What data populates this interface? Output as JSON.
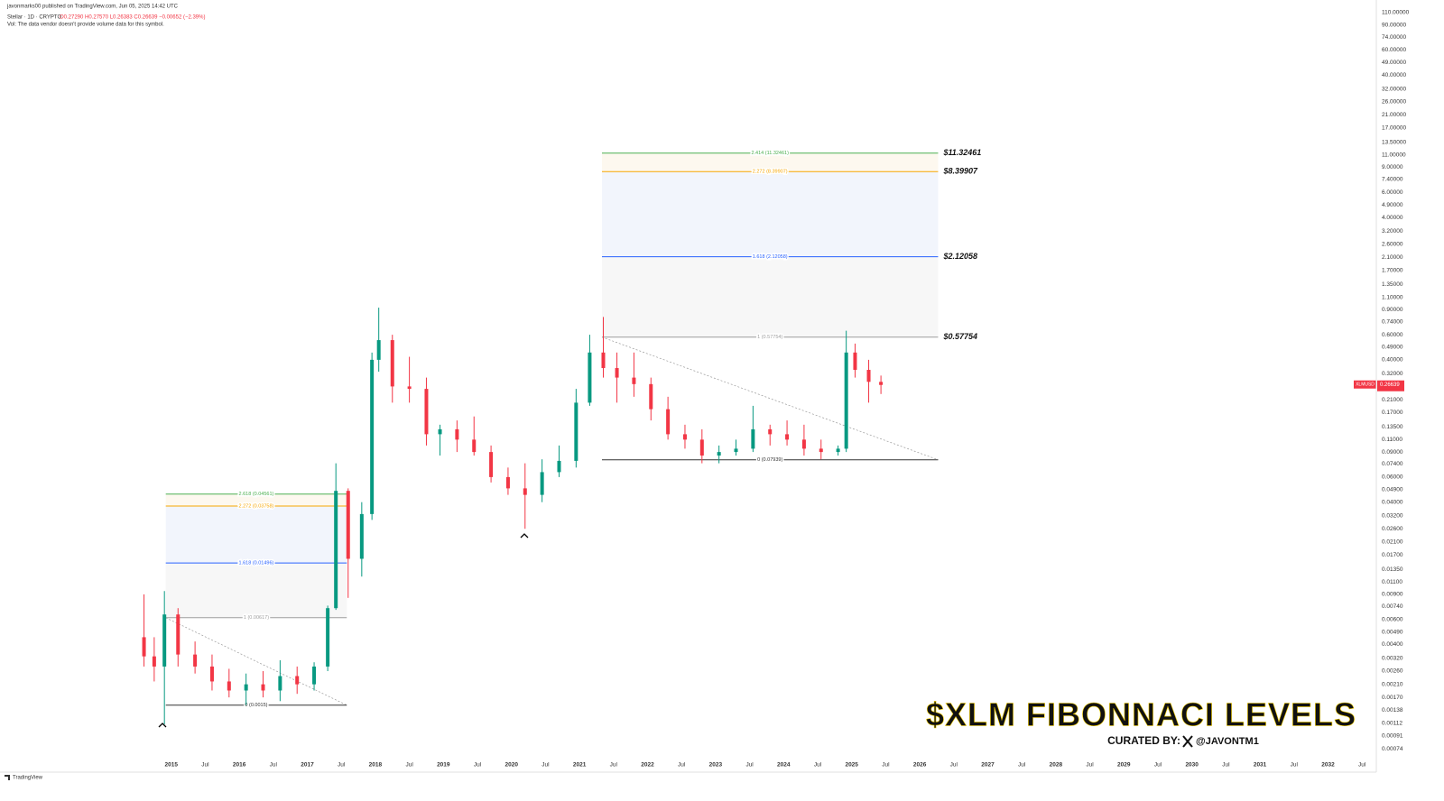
{
  "header": {
    "published": "javonmarks00 published on TradingView.com, Jun 05, 2025 14:42 UTC",
    "symbol": "Stellar · 1D · CRYPTO",
    "ohlc": "O0.27290 H0.27570 L0.26383 C0.26639 −0.00652 (−2.39%)",
    "volume_note": "Vol: The data vendor doesn't provide volume data for this symbol."
  },
  "chart_data": {
    "type": "candlestick",
    "log_scale": true,
    "grid": false,
    "x": [
      2014.6,
      2014.75,
      2014.9,
      2015.1,
      2015.35,
      2015.6,
      2015.85,
      2016.1,
      2016.35,
      2016.6,
      2016.85,
      2017.1,
      2017.3,
      2017.42,
      2017.6,
      2017.8,
      2017.95,
      2018.05,
      2018.25,
      2018.5,
      2018.75,
      2018.95,
      2019.2,
      2019.45,
      2019.7,
      2019.95,
      2020.2,
      2020.45,
      2020.7,
      2020.95,
      2021.15,
      2021.35,
      2021.55,
      2021.8,
      2022.05,
      2022.3,
      2022.55,
      2022.8,
      2023.05,
      2023.3,
      2023.55,
      2023.8,
      2024.05,
      2024.3,
      2024.55,
      2024.8,
      2024.92,
      2025.05,
      2025.25,
      2025.43
    ],
    "open": [
      0.0045,
      0.0033,
      0.0028,
      0.0065,
      0.0034,
      0.0028,
      0.0022,
      0.0019,
      0.0021,
      0.0019,
      0.0024,
      0.0021,
      0.0028,
      0.0072,
      0.048,
      0.016,
      0.033,
      0.4,
      0.55,
      0.26,
      0.25,
      0.12,
      0.13,
      0.11,
      0.09,
      0.06,
      0.05,
      0.045,
      0.065,
      0.078,
      0.2,
      0.45,
      0.35,
      0.3,
      0.27,
      0.18,
      0.12,
      0.11,
      0.085,
      0.09,
      0.095,
      0.13,
      0.12,
      0.11,
      0.095,
      0.09,
      0.095,
      0.45,
      0.34,
      0.28
    ],
    "high": [
      0.009,
      0.0045,
      0.0095,
      0.0072,
      0.0042,
      0.0034,
      0.0027,
      0.0025,
      0.0026,
      0.0031,
      0.0028,
      0.003,
      0.0075,
      0.075,
      0.05,
      0.04,
      0.45,
      0.93,
      0.6,
      0.42,
      0.3,
      0.14,
      0.15,
      0.16,
      0.1,
      0.07,
      0.075,
      0.08,
      0.1,
      0.25,
      0.6,
      0.8,
      0.45,
      0.45,
      0.3,
      0.22,
      0.14,
      0.13,
      0.1,
      0.11,
      0.19,
      0.14,
      0.15,
      0.14,
      0.11,
      0.1,
      0.64,
      0.52,
      0.4,
      0.31
    ],
    "low": [
      0.0028,
      0.0022,
      0.0011,
      0.0028,
      0.0025,
      0.0019,
      0.0017,
      0.0015,
      0.0017,
      0.0016,
      0.0018,
      0.0019,
      0.0026,
      0.007,
      0.0085,
      0.012,
      0.03,
      0.33,
      0.2,
      0.2,
      0.1,
      0.085,
      0.09,
      0.085,
      0.055,
      0.045,
      0.026,
      0.04,
      0.06,
      0.07,
      0.19,
      0.3,
      0.2,
      0.22,
      0.15,
      0.11,
      0.095,
      0.075,
      0.075,
      0.085,
      0.09,
      0.1,
      0.1,
      0.085,
      0.08,
      0.085,
      0.09,
      0.3,
      0.2,
      0.23
    ],
    "close": [
      0.0033,
      0.0028,
      0.0065,
      0.0034,
      0.0028,
      0.0022,
      0.0019,
      0.0021,
      0.0019,
      0.0024,
      0.0021,
      0.0028,
      0.0072,
      0.048,
      0.016,
      0.033,
      0.4,
      0.55,
      0.26,
      0.25,
      0.12,
      0.13,
      0.11,
      0.09,
      0.06,
      0.05,
      0.045,
      0.065,
      0.078,
      0.2,
      0.45,
      0.35,
      0.3,
      0.27,
      0.18,
      0.12,
      0.11,
      0.085,
      0.09,
      0.095,
      0.13,
      0.12,
      0.11,
      0.095,
      0.09,
      0.095,
      0.45,
      0.34,
      0.28,
      0.26639
    ],
    "up_color": "#089981",
    "down_color": "#f23645",
    "xlim": [
      2012.55,
      2032.71
    ],
    "xticks": [
      2015,
      {
        "value": 2015.5,
        "label": "Jul"
      },
      2016,
      {
        "value": 2016.5,
        "label": "Jul"
      },
      2017,
      {
        "value": 2017.5,
        "label": "Jul"
      },
      2018,
      {
        "value": 2018.5,
        "label": "Jul"
      },
      2019,
      {
        "value": 2019.5,
        "label": "Jul"
      },
      2020,
      {
        "value": 2020.5,
        "label": "Jul"
      },
      2021,
      {
        "value": 2021.5,
        "label": "Jul"
      },
      2022,
      {
        "value": 2022.5,
        "label": "Jul"
      },
      2023,
      {
        "value": 2023.5,
        "label": "Jul"
      },
      2024,
      {
        "value": 2024.5,
        "label": "Jul"
      },
      2025,
      {
        "value": 2025.5,
        "label": "Jul"
      },
      2026,
      {
        "value": 2026.5,
        "label": "Jul"
      },
      2027,
      {
        "value": 2027.5,
        "label": "Jul"
      },
      2028,
      {
        "value": 2028.5,
        "label": "Jul"
      },
      2029,
      {
        "value": 2029.5,
        "label": "Jul"
      },
      2030,
      {
        "value": 2030.5,
        "label": "Jul"
      },
      2031,
      {
        "value": 2031.5,
        "label": "Jul"
      },
      2032,
      {
        "value": 2032.5,
        "label": "Jul"
      }
    ],
    "ylim": [
      0.00053,
      120
    ],
    "yticks": [
      {
        "value": 110,
        "label": "110.00000"
      },
      {
        "value": 90,
        "label": "90.00000"
      },
      {
        "value": 74,
        "label": "74.00000"
      },
      {
        "value": 60,
        "label": "60.00000"
      },
      {
        "value": 49,
        "label": "49.00000"
      },
      {
        "value": 40,
        "label": "40.00000"
      },
      {
        "value": 32,
        "label": "32.00000"
      },
      {
        "value": 26,
        "label": "26.00000"
      },
      {
        "value": 21,
        "label": "21.00000"
      },
      {
        "value": 17,
        "label": "17.00000"
      },
      {
        "value": 13.5,
        "label": "13.50000"
      },
      {
        "value": 11,
        "label": "11.00000"
      },
      {
        "value": 9,
        "label": "9.00000"
      },
      {
        "value": 7.4,
        "label": "7.40000"
      },
      {
        "value": 6,
        "label": "6.00000"
      },
      {
        "value": 4.9,
        "label": "4.90000"
      },
      {
        "value": 4,
        "label": "4.00000"
      },
      {
        "value": 3.2,
        "label": "3.20000"
      },
      {
        "value": 2.6,
        "label": "2.60000"
      },
      {
        "value": 2.1,
        "label": "2.10000"
      },
      {
        "value": 1.7,
        "label": "1.70000"
      },
      {
        "value": 1.35,
        "label": "1.35000"
      },
      {
        "value": 1.1,
        "label": "1.10000"
      },
      {
        "value": 0.9,
        "label": "0.90000"
      },
      {
        "value": 0.74,
        "label": "0.74000"
      },
      {
        "value": 0.6,
        "label": "0.60000"
      },
      {
        "value": 0.49,
        "label": "0.49000"
      },
      {
        "value": 0.4,
        "label": "0.40000"
      },
      {
        "value": 0.32,
        "label": "0.32000"
      },
      {
        "value": 0.21,
        "label": "0.21000"
      },
      {
        "value": 0.17,
        "label": "0.17000"
      },
      {
        "value": 0.135,
        "label": "0.13500"
      },
      {
        "value": 0.11,
        "label": "0.11000"
      },
      {
        "value": 0.09,
        "label": "0.09000"
      },
      {
        "value": 0.074,
        "label": "0.07400"
      },
      {
        "value": 0.06,
        "label": "0.06000"
      },
      {
        "value": 0.049,
        "label": "0.04900"
      },
      {
        "value": 0.04,
        "label": "0.04000"
      },
      {
        "value": 0.032,
        "label": "0.03200"
      },
      {
        "value": 0.026,
        "label": "0.02600"
      },
      {
        "value": 0.021,
        "label": "0.02100"
      },
      {
        "value": 0.017,
        "label": "0.01700"
      },
      {
        "value": 0.0135,
        "label": "0.01350"
      },
      {
        "value": 0.011,
        "label": "0.01100"
      },
      {
        "value": 0.009,
        "label": "0.00900"
      },
      {
        "value": 0.0074,
        "label": "0.00740"
      },
      {
        "value": 0.006,
        "label": "0.00600"
      },
      {
        "value": 0.0049,
        "label": "0.00490"
      },
      {
        "value": 0.004,
        "label": "0.00400"
      },
      {
        "value": 0.0032,
        "label": "0.00320"
      },
      {
        "value": 0.0026,
        "label": "0.00260"
      },
      {
        "value": 0.0021,
        "label": "0.00210"
      },
      {
        "value": 0.0017,
        "label": "0.00170"
      },
      {
        "value": 0.00138,
        "label": "0.00138"
      },
      {
        "value": 0.00112,
        "label": "0.00112"
      },
      {
        "value": 0.00091,
        "label": "0.00091"
      },
      {
        "value": 0.00074,
        "label": "0.00074"
      }
    ],
    "last_price": {
      "symbol": "XLMUSD",
      "value": 0.26639,
      "color": "#f23645"
    },
    "fib_sets": [
      {
        "x_range": [
          2014.92,
          2017.58
        ],
        "levels": [
          {
            "label": "2.618 (0.04561)",
            "value": 0.04561,
            "color": "#4caf50"
          },
          {
            "label": "2.272 (0.03758)",
            "value": 0.03758,
            "color": "#f7a600",
            "zone_color": "#fdf8ef"
          },
          {
            "label": "1.618 (0.01496)",
            "value": 0.01496,
            "color": "#2962ff",
            "zone_color": "#f2f5fc"
          },
          {
            "label": "1 (0.00617)",
            "value": 0.00617,
            "color": "#9e9e9e",
            "zone_color": "#f7f7f7"
          },
          {
            "label": "0 (0.0015)",
            "value": 0.0015,
            "color": "#333333"
          }
        ]
      },
      {
        "x_range": [
          2021.33,
          2026.27
        ],
        "levels": [
          {
            "label": "2.414 (11.32461)",
            "value": 11.32461,
            "color": "#4caf50",
            "price_label": "$11.32461"
          },
          {
            "label": "2.272 (8.39907)",
            "value": 8.39907,
            "color": "#f7a600",
            "zone_color": "#fdf8ef",
            "price_label": "$8.39907"
          },
          {
            "label": "1.618 (2.12058)",
            "value": 2.12058,
            "color": "#2962ff",
            "zone_color": "#f2f5fc",
            "price_label": "$2.12058"
          },
          {
            "label": "1 (0.57754)",
            "value": 0.57754,
            "color": "#9e9e9e",
            "zone_color": "#f7f7f7",
            "price_label": "$0.57754"
          },
          {
            "label": "0 (0.07939)",
            "value": 0.07939,
            "color": "#333333"
          }
        ]
      }
    ]
  },
  "overlay": {
    "title": "$XLM FIBONNACI LEVELS",
    "curated_by": "CURATED BY:",
    "handle": "@JAVONTM1"
  },
  "footer": {
    "brand": "TradingView"
  }
}
